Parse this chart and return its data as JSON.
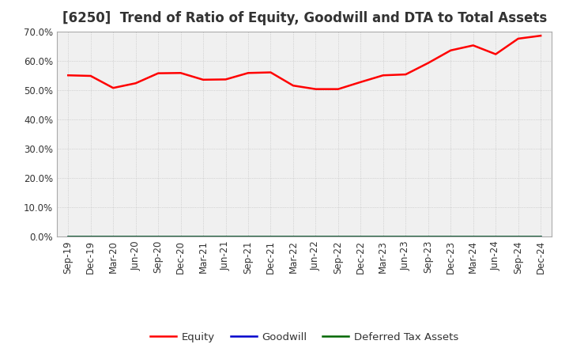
{
  "title": "[6250]  Trend of Ratio of Equity, Goodwill and DTA to Total Assets",
  "x_labels": [
    "Sep-19",
    "Dec-19",
    "Mar-20",
    "Jun-20",
    "Sep-20",
    "Dec-20",
    "Mar-21",
    "Jun-21",
    "Sep-21",
    "Dec-21",
    "Mar-22",
    "Jun-22",
    "Sep-22",
    "Dec-22",
    "Mar-23",
    "Jun-23",
    "Sep-23",
    "Dec-23",
    "Mar-24",
    "Jun-24",
    "Sep-24",
    "Dec-24"
  ],
  "equity": [
    0.55,
    0.548,
    0.507,
    0.523,
    0.557,
    0.558,
    0.535,
    0.536,
    0.558,
    0.56,
    0.515,
    0.503,
    0.503,
    0.527,
    0.55,
    0.553,
    0.592,
    0.635,
    0.652,
    0.622,
    0.675,
    0.685
  ],
  "goodwill": [
    0.0,
    0.0,
    0.0,
    0.0,
    0.0,
    0.0,
    0.0,
    0.0,
    0.0,
    0.0,
    0.0,
    0.0,
    0.0,
    0.0,
    0.0,
    0.0,
    0.0,
    0.0,
    0.0,
    0.0,
    0.0,
    0.0
  ],
  "deferred_tax": [
    0.0,
    0.0,
    0.0,
    0.0,
    0.0,
    0.0,
    0.0,
    0.0,
    0.0,
    0.0,
    0.0,
    0.0,
    0.0,
    0.0,
    0.0,
    0.0,
    0.0,
    0.0,
    0.0,
    0.0,
    0.0,
    0.0
  ],
  "equity_color": "#FF0000",
  "goodwill_color": "#0000CC",
  "deferred_tax_color": "#006600",
  "ylim": [
    0.0,
    0.7
  ],
  "yticks": [
    0.0,
    0.1,
    0.2,
    0.3,
    0.4,
    0.5,
    0.6,
    0.7
  ],
  "background_color": "#FFFFFF",
  "plot_bg_color": "#F0F0F0",
  "grid_color": "#BBBBBB",
  "title_color": "#333333",
  "title_fontsize": 12,
  "axis_fontsize": 8.5,
  "legend_fontsize": 9.5
}
